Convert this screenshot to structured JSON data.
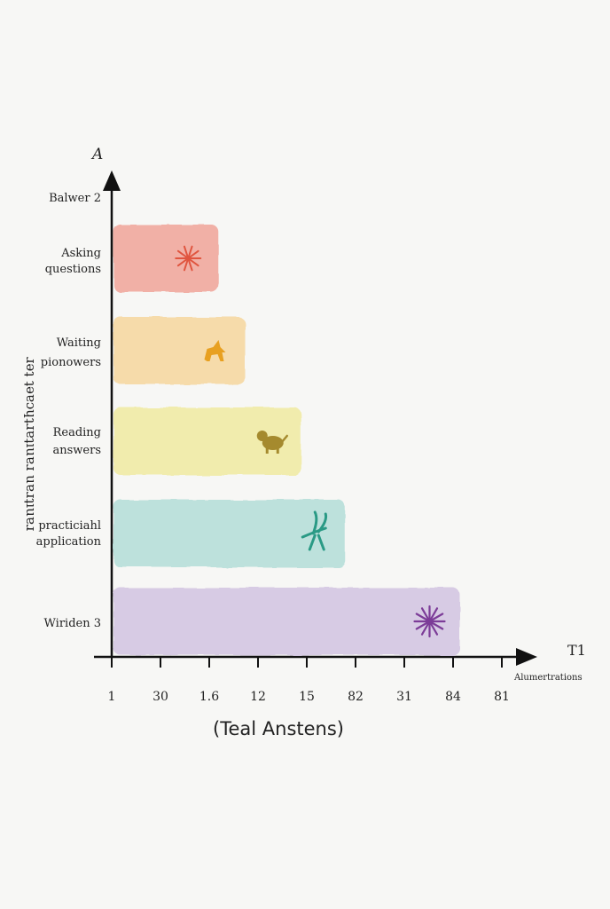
{
  "chart_data": {
    "type": "bar",
    "orientation": "horizontal",
    "y_axis_letter": "A",
    "x_axis_letter": "T1",
    "x_axis_end_label": "Alumertrations",
    "ylabel": "ɹǝʇ ʇǝɐɔɥʇɹɐʇıuɐɹ uɐɹʇıuɐɹ",
    "xlabel": "(Teal Anstens)",
    "x_ticks": [
      "1",
      "30",
      "1.6",
      "12",
      "15",
      "82",
      "31",
      "84",
      "81"
    ],
    "xlim": [
      0,
      8.5
    ],
    "categories": [
      "Balwer 2",
      "Asking questions",
      "Waiting pionowers",
      "Reading answers",
      "practiciahl application",
      "Wiriden 3"
    ],
    "bars": [
      {
        "category": "Asking questions",
        "value": 2.15,
        "color": "#f1a9a0",
        "icon": "sun-doodle-icon",
        "icon_color": "#e0553f"
      },
      {
        "category": "Waiting pionowers",
        "value": 2.7,
        "color": "#f6d9a4",
        "icon": "fox-doodle-icon",
        "icon_color": "#e8a020"
      },
      {
        "category": "Reading answers",
        "value": 3.85,
        "color": "#f1eca6",
        "icon": "dog-doodle-icon",
        "icon_color": "#a58a2e"
      },
      {
        "category": "practiciahl application",
        "value": 4.75,
        "color": "#b7e0da",
        "icon": "bird-doodle-icon",
        "icon_color": "#2a9a85"
      },
      {
        "category": "Wiriden 3",
        "value": 7.1,
        "color": "#d5c7e3",
        "icon": "star-doodle-icon",
        "icon_color": "#7c3c98"
      }
    ],
    "grid": false,
    "legend": "none"
  }
}
